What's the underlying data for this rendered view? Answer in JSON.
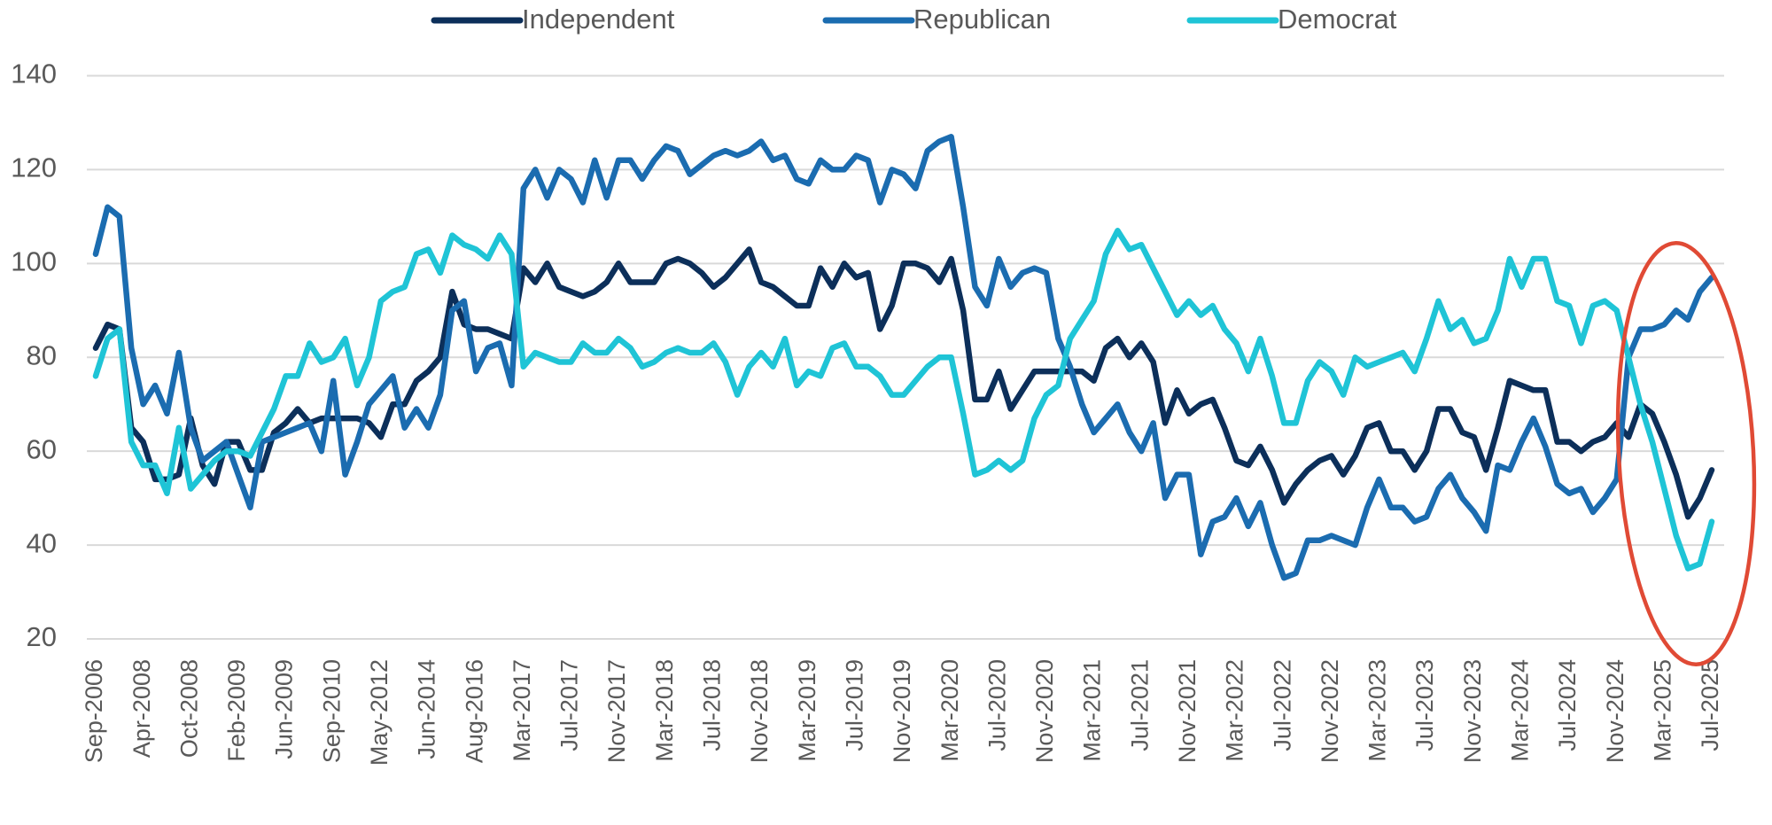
{
  "chart_data": {
    "type": "line",
    "categories": [
      "Sep-2006",
      null,
      null,
      null,
      "Apr-2008",
      null,
      null,
      null,
      "Oct-2008",
      null,
      null,
      null,
      "Feb-2009",
      null,
      null,
      null,
      "Jun-2009",
      null,
      null,
      null,
      "Sep-2010",
      null,
      null,
      null,
      "May-2012",
      null,
      null,
      null,
      "Jun-2014",
      null,
      null,
      null,
      "Aug-2016",
      null,
      null,
      null,
      "Mar-2017",
      null,
      null,
      null,
      "Jul-2017",
      null,
      null,
      null,
      "Nov-2017",
      null,
      null,
      null,
      "Mar-2018",
      null,
      null,
      null,
      "Jul-2018",
      null,
      null,
      null,
      "Nov-2018",
      null,
      null,
      null,
      "Mar-2019",
      null,
      null,
      null,
      "Jul-2019",
      null,
      null,
      null,
      "Nov-2019",
      null,
      null,
      null,
      "Mar-2020",
      null,
      null,
      null,
      "Jul-2020",
      null,
      null,
      null,
      "Nov-2020",
      null,
      null,
      null,
      "Mar-2021",
      null,
      null,
      null,
      "Jul-2021",
      null,
      null,
      null,
      "Nov-2021",
      null,
      null,
      null,
      "Mar-2022",
      null,
      null,
      null,
      "Jul-2022",
      null,
      null,
      null,
      "Nov-2022",
      null,
      null,
      null,
      "Mar-2023",
      null,
      null,
      null,
      "Jul-2023",
      null,
      null,
      null,
      "Nov-2023",
      null,
      null,
      null,
      "Mar-2024",
      null,
      null,
      null,
      "Jul-2024",
      null,
      null,
      null,
      "Nov-2024",
      null,
      null,
      null,
      "Mar-2025",
      null,
      null,
      null,
      "Jul-2025"
    ],
    "series": [
      {
        "name": "Independent",
        "color": "#0c2f5a",
        "values": [
          82,
          87,
          86,
          65,
          62,
          54,
          54,
          55,
          67,
          57,
          53,
          62,
          62,
          56,
          56,
          64,
          66,
          69,
          66,
          67,
          67,
          67,
          67,
          66,
          63,
          70,
          70,
          75,
          77,
          80,
          94,
          87,
          86,
          86,
          85,
          84,
          99,
          96,
          100,
          95,
          94,
          93,
          94,
          96,
          100,
          96,
          96,
          96,
          100,
          101,
          100,
          98,
          95,
          97,
          100,
          103,
          96,
          95,
          93,
          91,
          91,
          99,
          95,
          100,
          97,
          98,
          86,
          91,
          100,
          100,
          99,
          96,
          101,
          90,
          71,
          71,
          77,
          69,
          73,
          77,
          77,
          77,
          77,
          77,
          75,
          82,
          84,
          80,
          83,
          79,
          66,
          73,
          68,
          70,
          71,
          65,
          58,
          57,
          61,
          56,
          49,
          53,
          56,
          58,
          59,
          55,
          59,
          65,
          66,
          60,
          60,
          56,
          60,
          69,
          69,
          64,
          63,
          56,
          65,
          75,
          74,
          73,
          73,
          62,
          62,
          60,
          62,
          63,
          66,
          63,
          70,
          68,
          62,
          55,
          46,
          50,
          56
        ]
      },
      {
        "name": "Republican",
        "color": "#1b6cb0",
        "values": [
          102,
          112,
          110,
          82,
          70,
          74,
          68,
          81,
          65,
          58,
          60,
          62,
          55,
          48,
          62,
          63,
          64,
          65,
          66,
          60,
          75,
          55,
          62,
          70,
          73,
          76,
          65,
          69,
          65,
          72,
          90,
          92,
          77,
          82,
          83,
          74,
          116,
          120,
          114,
          120,
          118,
          113,
          122,
          114,
          122,
          122,
          118,
          122,
          125,
          124,
          119,
          121,
          123,
          124,
          123,
          124,
          126,
          122,
          123,
          118,
          117,
          122,
          120,
          120,
          123,
          122,
          113,
          120,
          119,
          116,
          124,
          126,
          127,
          112,
          95,
          91,
          101,
          95,
          98,
          99,
          98,
          84,
          78,
          70,
          64,
          67,
          70,
          64,
          60,
          66,
          50,
          55,
          55,
          38,
          45,
          46,
          50,
          44,
          49,
          40,
          33,
          34,
          41,
          41,
          42,
          41,
          40,
          48,
          54,
          48,
          48,
          45,
          46,
          52,
          55,
          50,
          47,
          43,
          57,
          56,
          62,
          67,
          61,
          53,
          51,
          52,
          47,
          50,
          54,
          80,
          86,
          86,
          87,
          90,
          88,
          94,
          97
        ]
      },
      {
        "name": "Democrat",
        "color": "#1fc4d6",
        "values": [
          76,
          84,
          86,
          62,
          57,
          57,
          51,
          65,
          52,
          55,
          58,
          60,
          60,
          59,
          64,
          69,
          76,
          76,
          83,
          79,
          80,
          84,
          74,
          80,
          92,
          94,
          95,
          102,
          103,
          98,
          106,
          104,
          103,
          101,
          106,
          102,
          78,
          81,
          80,
          79,
          79,
          83,
          81,
          81,
          84,
          82,
          78,
          79,
          81,
          82,
          81,
          81,
          83,
          79,
          72,
          78,
          81,
          78,
          84,
          74,
          77,
          76,
          82,
          83,
          78,
          78,
          76,
          72,
          72,
          75,
          78,
          80,
          80,
          68,
          55,
          56,
          58,
          56,
          58,
          67,
          72,
          74,
          84,
          88,
          92,
          102,
          107,
          103,
          104,
          99,
          94,
          89,
          92,
          89,
          91,
          86,
          83,
          77,
          84,
          76,
          66,
          66,
          75,
          79,
          77,
          72,
          80,
          78,
          79,
          80,
          81,
          77,
          84,
          92,
          86,
          88,
          83,
          84,
          90,
          101,
          95,
          101,
          101,
          92,
          91,
          83,
          91,
          92,
          90,
          80,
          70,
          62,
          52,
          42,
          35,
          36,
          45
        ]
      }
    ],
    "ylim": [
      20,
      140
    ],
    "yticks": [
      20,
      40,
      60,
      80,
      100,
      120,
      140
    ],
    "grid": true,
    "legend": "top"
  }
}
